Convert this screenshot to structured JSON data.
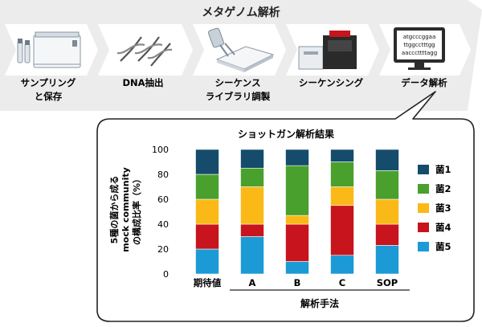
{
  "workflow": {
    "title": "メタゲノム解析",
    "steps": [
      {
        "label_lines": [
          "サンプリング",
          "と保存"
        ],
        "icon": "freezer-and-tubes-icon"
      },
      {
        "label_lines": [
          "DNA抽出"
        ],
        "icon": "dna-helix-icon"
      },
      {
        "label_lines": [
          "シーケンス",
          "ライブラリ調製"
        ],
        "icon": "pipette-and-plate-icon"
      },
      {
        "label_lines": [
          "シーケンシング"
        ],
        "icon": "sequencer-icon"
      },
      {
        "label_lines": [
          "データ解析"
        ],
        "icon": "monitor-sequence-icon"
      }
    ],
    "monitor_text": [
      "atgcccggaa",
      "ttggcctttgg",
      "aacccttttagg"
    ]
  },
  "chart_data": {
    "type": "bar",
    "stacked": true,
    "title": "ショットガン解析結果",
    "ylabel_lines": [
      "5種の菌から成る",
      "mock community",
      "の構成比率（%）"
    ],
    "xlabel": "解析手法",
    "categories": [
      "期待値",
      "A",
      "B",
      "C",
      "SOP"
    ],
    "ylim": [
      0,
      100
    ],
    "yticks": [
      0,
      20,
      40,
      60,
      80,
      100
    ],
    "grid": false,
    "legend_position": "right",
    "series": [
      {
        "name": "菌5",
        "color": "#1b9ad6",
        "values": [
          20,
          30,
          10,
          15,
          23
        ]
      },
      {
        "name": "菌4",
        "color": "#c8141c",
        "values": [
          20,
          10,
          30,
          40,
          17
        ]
      },
      {
        "name": "菌3",
        "color": "#fbb917",
        "values": [
          20,
          30,
          7,
          15,
          20
        ]
      },
      {
        "name": "菌2",
        "color": "#4aa02c",
        "values": [
          20,
          15,
          40,
          20,
          23
        ]
      },
      {
        "name": "菌1",
        "color": "#154c6c",
        "values": [
          20,
          15,
          13,
          10,
          17
        ]
      }
    ],
    "legend_order": [
      "菌1",
      "菌2",
      "菌3",
      "菌4",
      "菌5"
    ]
  }
}
